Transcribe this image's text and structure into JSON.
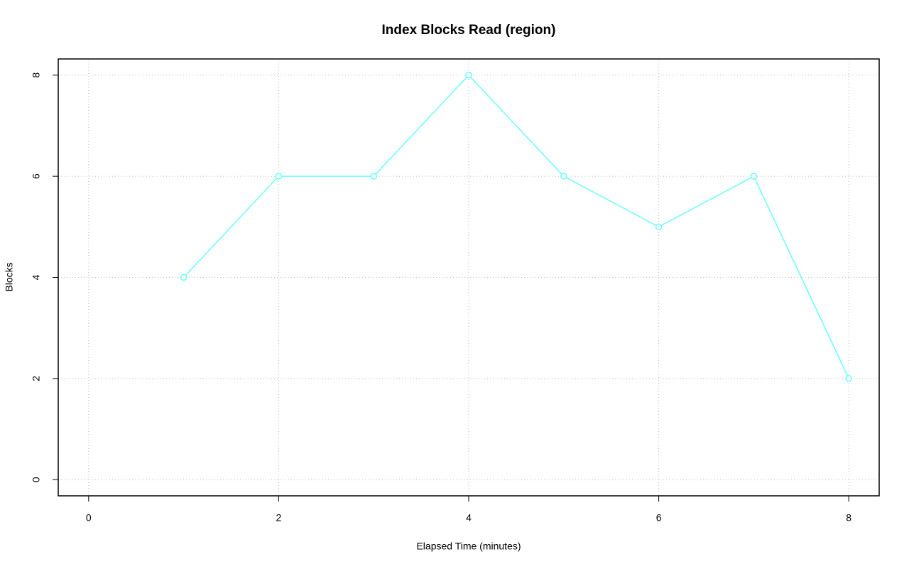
{
  "chart_data": {
    "type": "line",
    "title": "Index Blocks Read (region)",
    "x_label": "Elapsed Time (minutes)",
    "y_label": "Blocks",
    "x": [
      1,
      2,
      3,
      4,
      5,
      6,
      7,
      8
    ],
    "values": [
      4,
      6,
      6,
      8,
      6,
      5,
      6,
      2
    ],
    "color": "#66ffff",
    "xlim": [
      -0.32,
      8.32
    ],
    "xticks": [
      0,
      2,
      4,
      6,
      8
    ],
    "ylim": [
      -0.32,
      8.32
    ],
    "yticks": [
      0,
      2,
      4,
      6,
      8
    ],
    "grid": true
  }
}
